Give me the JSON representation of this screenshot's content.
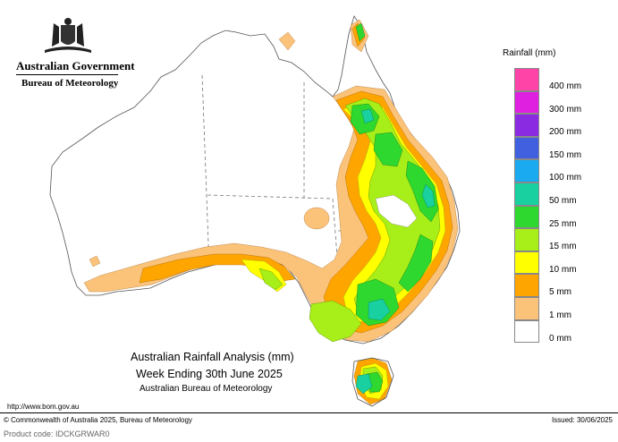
{
  "header": {
    "government": "Australian Government",
    "bureau": "Bureau of Meteorology"
  },
  "legend": {
    "title": "Rainfall (mm)",
    "items": [
      {
        "label": "400 mm",
        "color": "#ff44a8"
      },
      {
        "label": "300 mm",
        "color": "#e020e0"
      },
      {
        "label": "200 mm",
        "color": "#8a2be2"
      },
      {
        "label": "150 mm",
        "color": "#4060e0"
      },
      {
        "label": "100 mm",
        "color": "#19aaf0"
      },
      {
        "label": "50 mm",
        "color": "#19d0a0"
      },
      {
        "label": "25 mm",
        "color": "#2ed82e"
      },
      {
        "label": "15 mm",
        "color": "#a8ee18"
      },
      {
        "label": "10 mm",
        "color": "#ffff00"
      },
      {
        "label": "5 mm",
        "color": "#ffa500"
      },
      {
        "label": "1 mm",
        "color": "#fbc27a"
      },
      {
        "label": "0 mm",
        "color": "#ffffff"
      }
    ]
  },
  "caption": {
    "line1": "Australian Rainfall Analysis (mm)",
    "line2": "Week Ending 30th June 2025",
    "line3": "Australian Bureau of Meteorology"
  },
  "footer": {
    "url": "http://www.bom.gov.au",
    "copyright": "© Commonwealth of Australia 2025, Bureau of Meteorology",
    "issued": "Issued: 30/06/2025",
    "product_code": "Product code: IDCKGRWAR0"
  }
}
